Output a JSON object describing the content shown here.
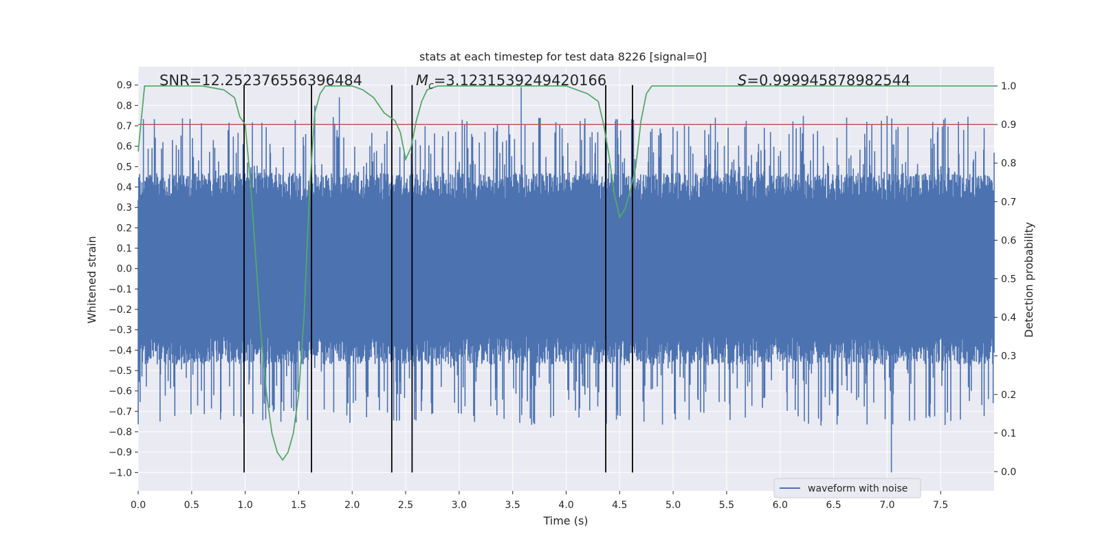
{
  "chart_data": {
    "type": "line",
    "title": "stats at each timestep for test data 8226 [signal=0]",
    "xlabel": "Time (s)",
    "ylabel_left": "Whitened strain",
    "ylabel_right": "Detection probability",
    "xlim": [
      0.0,
      8.0
    ],
    "ylim_left": [
      -1.09,
      0.99
    ],
    "ylim_right": [
      -0.05,
      1.05
    ],
    "x_ticks": [
      0.0,
      0.5,
      1.0,
      1.5,
      2.0,
      2.5,
      3.0,
      3.5,
      4.0,
      4.5,
      5.0,
      5.5,
      6.0,
      6.5,
      7.0,
      7.5
    ],
    "x_tick_labels": [
      "0.0",
      "0.5",
      "1.0",
      "1.5",
      "2.0",
      "2.5",
      "3.0",
      "3.5",
      "4.0",
      "4.5",
      "5.0",
      "5.5",
      "6.0",
      "6.5",
      "7.0",
      "7.5"
    ],
    "y_left_ticks": [
      0.9,
      0.8,
      0.7,
      0.6,
      0.5,
      0.4,
      0.3,
      0.2,
      0.1,
      0.0,
      -0.1,
      -0.2,
      -0.3,
      -0.4,
      -0.5,
      -0.6,
      -0.7,
      -0.8,
      -0.9,
      -1.0
    ],
    "y_left_tick_labels": [
      "0.9",
      "0.8",
      "0.7",
      "0.6",
      "0.5",
      "0.4",
      "0.3",
      "0.2",
      "0.1",
      "0.0",
      "−0.1",
      "−0.2",
      "−0.3",
      "−0.4",
      "−0.5",
      "−0.6",
      "−0.7",
      "−0.8",
      "−0.9",
      "−1.0"
    ],
    "y_right_ticks": [
      1.0,
      0.9,
      0.8,
      0.7,
      0.6,
      0.5,
      0.4,
      0.3,
      0.2,
      0.1,
      0.0
    ],
    "y_right_tick_labels": [
      "1.0",
      "0.9",
      "0.8",
      "0.7",
      "0.6",
      "0.5",
      "0.4",
      "0.3",
      "0.2",
      "0.1",
      "0.0"
    ],
    "threshold": {
      "value": 0.9,
      "axis": "right",
      "color": "#c44e52"
    },
    "vertical_lines": [
      0.99,
      1.62,
      2.37,
      2.56,
      4.37,
      4.62
    ],
    "vertical_line_range": [
      -1.0,
      0.9
    ],
    "waveform": {
      "name": "waveform with noise",
      "color": "#4c72b0",
      "samples": 1800,
      "core_amplitude": 0.33,
      "notable_spikes": [
        {
          "t": 0.98,
          "v": 0.61
        },
        {
          "t": 1.65,
          "v": 0.8
        },
        {
          "t": 1.88,
          "v": 0.84
        },
        {
          "t": 3.58,
          "v": 0.89
        },
        {
          "t": 4.49,
          "v": 0.56
        },
        {
          "t": 6.81,
          "v": 0.72
        },
        {
          "t": 7.04,
          "v": -1.0
        },
        {
          "t": 0.77,
          "v": -0.74
        },
        {
          "t": 1.95,
          "v": -0.72
        },
        {
          "t": 4.12,
          "v": -0.73
        },
        {
          "t": 4.47,
          "v": -0.74
        }
      ]
    },
    "detection_probability": {
      "name": "detection probability",
      "color": "#55a868",
      "t": [
        0.0,
        0.06,
        0.12,
        0.3,
        0.6,
        0.8,
        0.9,
        0.95,
        1.0,
        1.05,
        1.1,
        1.15,
        1.2,
        1.25,
        1.3,
        1.35,
        1.4,
        1.45,
        1.5,
        1.55,
        1.6,
        1.65,
        1.7,
        1.75,
        1.8,
        2.0,
        2.1,
        2.2,
        2.3,
        2.35,
        2.4,
        2.45,
        2.5,
        2.55,
        2.6,
        2.65,
        2.7,
        2.8,
        3.0,
        3.2,
        3.3,
        3.4,
        3.6,
        3.8,
        4.0,
        4.1,
        4.2,
        4.3,
        4.35,
        4.4,
        4.45,
        4.5,
        4.55,
        4.6,
        4.65,
        4.7,
        4.75,
        4.8,
        4.85,
        5.0,
        6.0,
        7.0,
        8.0
      ],
      "p": [
        0.83,
        1.0,
        1.0,
        1.0,
        1.0,
        0.99,
        0.97,
        0.92,
        0.9,
        0.75,
        0.55,
        0.35,
        0.2,
        0.1,
        0.05,
        0.03,
        0.05,
        0.1,
        0.2,
        0.4,
        0.72,
        0.93,
        0.98,
        1.0,
        1.0,
        1.0,
        0.99,
        0.97,
        0.93,
        0.92,
        0.91,
        0.88,
        0.81,
        0.84,
        0.91,
        0.96,
        0.99,
        1.0,
        1.0,
        1.0,
        1.0,
        1.0,
        1.0,
        1.0,
        1.0,
        0.99,
        0.98,
        0.96,
        0.9,
        0.82,
        0.72,
        0.66,
        0.68,
        0.73,
        0.79,
        0.91,
        0.98,
        1.0,
        1.0,
        1.0,
        1.0,
        1.0,
        1.0
      ]
    },
    "annotations": {
      "snr": "SNR=12.252376556396484",
      "mc_symbol": "M",
      "mc_sub": "c",
      "mc_value": "=3.1231539249420166",
      "s_symbol": "S",
      "s_value": "=0.999945878982544"
    },
    "legend": {
      "label": "waveform with noise",
      "position": "lower-right"
    },
    "colors": {
      "plot_bg": "#eaeaf2",
      "grid": "#ffffff",
      "vline": "#000000",
      "text": "#262626"
    }
  }
}
